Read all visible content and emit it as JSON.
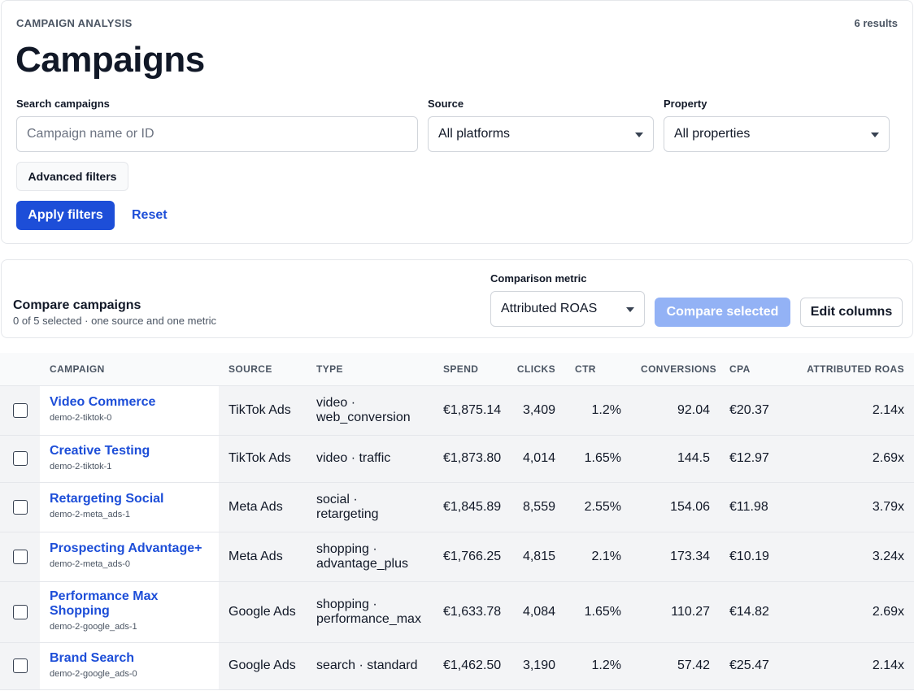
{
  "header": {
    "eyebrow": "CAMPAIGN ANALYSIS",
    "title": "Campaigns",
    "results": "6 results"
  },
  "filters": {
    "search_label": "Search campaigns",
    "search_placeholder": "Campaign name or ID",
    "source_label": "Source",
    "source_value": "All platforms",
    "property_label": "Property",
    "property_value": "All properties",
    "advanced_label": "Advanced filters",
    "apply_label": "Apply filters",
    "reset_label": "Reset"
  },
  "compare": {
    "title": "Compare campaigns",
    "subtitle": "0 of 5 selected · one source and one metric",
    "metric_label": "Comparison metric",
    "metric_value": "Attributed ROAS",
    "compare_label": "Compare selected",
    "edit_label": "Edit columns"
  },
  "table": {
    "columns": [
      "CAMPAIGN",
      "SOURCE",
      "TYPE",
      "SPEND",
      "CLICKS",
      "CTR",
      "CONVERSIONS",
      "CPA",
      "ATTRIBUTED ROAS"
    ],
    "rows": [
      {
        "name": "Video Commerce",
        "id": "demo-2-tiktok-0",
        "source": "TikTok Ads",
        "type_a": "video ·",
        "type_b": "web_conversion",
        "spend": "€1,875.14",
        "clicks": "3,409",
        "ctr": "1.2%",
        "conversions": "92.04",
        "cpa": "€20.37",
        "roas": "2.14x"
      },
      {
        "name": "Creative Testing",
        "id": "demo-2-tiktok-1",
        "source": "TikTok Ads",
        "type_a": "video · traffic",
        "type_b": "",
        "spend": "€1,873.80",
        "clicks": "4,014",
        "ctr": "1.65%",
        "conversions": "144.5",
        "cpa": "€12.97",
        "roas": "2.69x"
      },
      {
        "name": "Retargeting Social",
        "id": "demo-2-meta_ads-1",
        "source": "Meta Ads",
        "type_a": "social ·",
        "type_b": "retargeting",
        "spend": "€1,845.89",
        "clicks": "8,559",
        "ctr": "2.55%",
        "conversions": "154.06",
        "cpa": "€11.98",
        "roas": "3.79x"
      },
      {
        "name": "Prospecting Advantage+",
        "id": "demo-2-meta_ads-0",
        "source": "Meta Ads",
        "type_a": "shopping ·",
        "type_b": "advantage_plus",
        "spend": "€1,766.25",
        "clicks": "4,815",
        "ctr": "2.1%",
        "conversions": "173.34",
        "cpa": "€10.19",
        "roas": "3.24x"
      },
      {
        "name": "Performance Max Shopping",
        "id": "demo-2-google_ads-1",
        "source": "Google Ads",
        "type_a": "shopping ·",
        "type_b": "performance_max",
        "spend": "€1,633.78",
        "clicks": "4,084",
        "ctr": "1.65%",
        "conversions": "110.27",
        "cpa": "€14.82",
        "roas": "2.69x"
      },
      {
        "name": "Brand Search",
        "id": "demo-2-google_ads-0",
        "source": "Google Ads",
        "type_a": "search · standard",
        "type_b": "",
        "spend": "€1,462.50",
        "clicks": "3,190",
        "ctr": "1.2%",
        "conversions": "57.42",
        "cpa": "€25.47",
        "roas": "2.14x"
      }
    ]
  }
}
